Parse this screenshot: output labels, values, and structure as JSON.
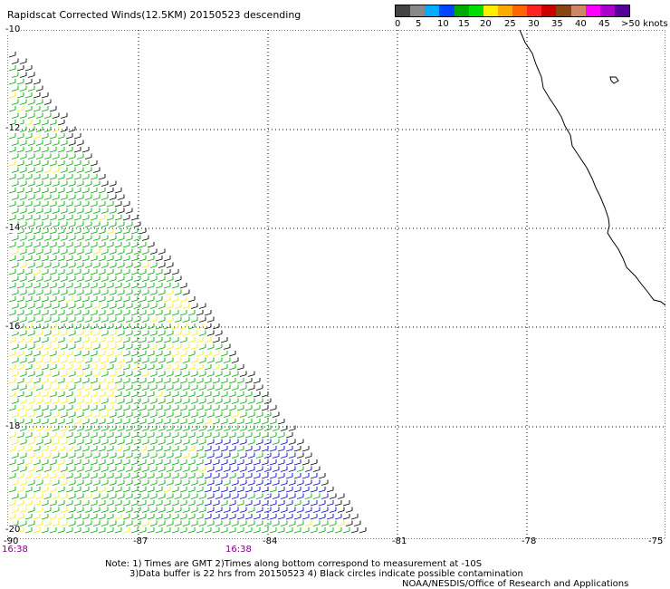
{
  "title": "Rapidscat Corrected Winds(12.5KM) 20150523 descending",
  "scale": {
    "colors": [
      "#444444",
      "#888888",
      "#00aaff",
      "#0044ff",
      "#00aa00",
      "#00dd00",
      "#ffee00",
      "#ffaa00",
      "#ff6600",
      "#ff2222",
      "#cc0000",
      "#884411",
      "#cc8866",
      "#ff00ff",
      "#aa00cc",
      "#550099"
    ],
    "labels": [
      "0",
      "5",
      "10",
      "15",
      "20",
      "25",
      "30",
      "35",
      "40",
      "45",
      ">50 knots"
    ]
  },
  "map": {
    "lat_labels": [
      "-10",
      "-12",
      "-14",
      "-16",
      "-18",
      "-20"
    ],
    "lon_labels": [
      "-90",
      "-87",
      "-84",
      "-81",
      "-78",
      "-75"
    ],
    "times": [
      "16:38",
      "16:38"
    ],
    "grid": true
  },
  "notes": {
    "line1": "Note: 1) Times are GMT 2)Times along bottom correspond to measurement at -10S",
    "line2": "3)Data buffer is 22 hrs from 20150523 4) Black circles indicate possible contamination",
    "credit": "NOAA/NESDIS/Office of Research and Applications"
  }
}
